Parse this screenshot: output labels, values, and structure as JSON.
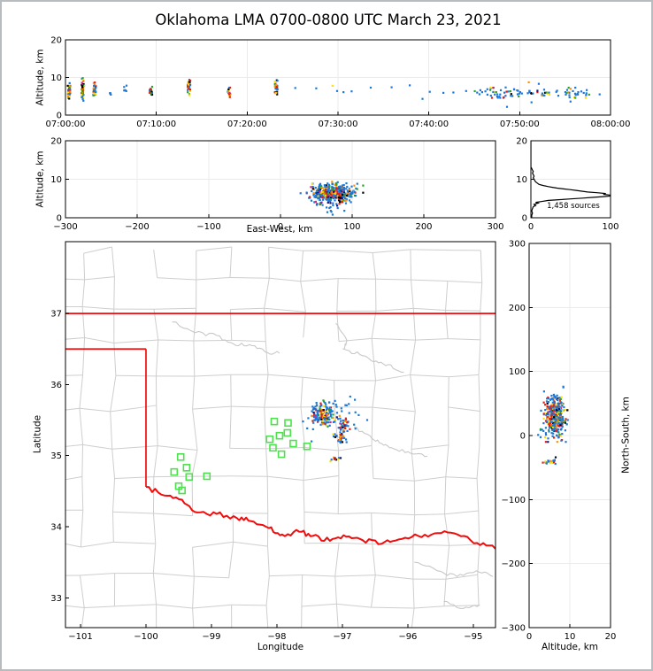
{
  "title": "Oklahoma LMA 0700-0800 UTC March 23, 2021",
  "colors": {
    "background": "#ffffff",
    "frame": "#000000",
    "grid": "#ebebeb",
    "county_line": "#cecece",
    "river_line": "#c8c8c8",
    "state_border": "#f00d0d",
    "station_marker": "#4de24d",
    "histogram_line": "#000000",
    "palette": {
      "blue": "#1c78d8",
      "green": "#27a327",
      "yellow": "#ffdf00",
      "orange": "#ff9100",
      "red": "#e51b12",
      "navy": "#10137e",
      "black": "#000000",
      "magenta": "#d6258e"
    },
    "palette_weights": {
      "cool": [
        [
          "blue",
          0.52
        ],
        [
          "green",
          0.1
        ],
        [
          "yellow",
          0.08
        ],
        [
          "orange",
          0.07
        ],
        [
          "red",
          0.1
        ],
        [
          "navy",
          0.06
        ],
        [
          "black",
          0.03
        ],
        [
          "magenta",
          0.04
        ]
      ],
      "hot": [
        [
          "red",
          0.3
        ],
        [
          "orange",
          0.2
        ],
        [
          "yellow",
          0.16
        ],
        [
          "green",
          0.1
        ],
        [
          "black",
          0.08
        ],
        [
          "navy",
          0.06
        ],
        [
          "blue",
          0.08
        ],
        [
          "magenta",
          0.02
        ]
      ],
      "flash": [
        [
          "blue",
          0.3
        ],
        [
          "red",
          0.17
        ],
        [
          "orange",
          0.13
        ],
        [
          "yellow",
          0.12
        ],
        [
          "green",
          0.12
        ],
        [
          "black",
          0.07
        ],
        [
          "navy",
          0.06
        ],
        [
          "magenta",
          0.03
        ]
      ],
      "band": [
        [
          "blue",
          0.68
        ],
        [
          "green",
          0.08
        ],
        [
          "yellow",
          0.07
        ],
        [
          "orange",
          0.05
        ],
        [
          "red",
          0.06
        ],
        [
          "black",
          0.03
        ],
        [
          "navy",
          0.03
        ]
      ]
    }
  },
  "chart_data": [
    {
      "id": "time_height",
      "type": "scatter",
      "ylabel": "Altitude, km",
      "xlim_minutes": [
        0,
        60
      ],
      "xtick_minutes": [
        0,
        10,
        20,
        30,
        40,
        50,
        60
      ],
      "xtick_labels": [
        "07:00:00",
        "07:10:00",
        "07:20:00",
        "07:30:00",
        "07:40:00",
        "07:50:00",
        "08:00:00"
      ],
      "ylim": [
        0,
        20
      ],
      "ytick_vals": [
        0,
        10,
        20
      ],
      "ytick_labels": [
        "0",
        "10",
        "20"
      ],
      "flashes": [
        {
          "t": 0.4,
          "alt_lo": 3.8,
          "alt_hi": 9.6,
          "n": 34,
          "palette": "flash"
        },
        {
          "t": 1.9,
          "alt_lo": 3.4,
          "alt_hi": 10.0,
          "n": 46,
          "palette": "flash"
        },
        {
          "t": 3.2,
          "alt_lo": 3.9,
          "alt_hi": 9.2,
          "n": 30,
          "palette": "flash"
        },
        {
          "t": 4.9,
          "alt_lo": 5.1,
          "alt_hi": 6.3,
          "n": 4,
          "palette": "blue"
        },
        {
          "t": 6.6,
          "alt_lo": 5.2,
          "alt_hi": 8.9,
          "n": 6,
          "palette": "blue"
        },
        {
          "t": 9.4,
          "alt_lo": 4.7,
          "alt_hi": 7.6,
          "n": 24,
          "palette": "flash"
        },
        {
          "t": 13.6,
          "alt_lo": 4.3,
          "alt_hi": 10.4,
          "n": 26,
          "palette": "flash"
        },
        {
          "t": 18.0,
          "alt_lo": 4.3,
          "alt_hi": 7.6,
          "n": 16,
          "palette": "flash"
        },
        {
          "t": 23.2,
          "alt_lo": 5.0,
          "alt_hi": 9.8,
          "n": 26,
          "palette": "flash"
        }
      ],
      "band": {
        "t0": 44.5,
        "t1": 57.8,
        "alt_mean": 6.0,
        "alt_sd": 0.8,
        "alt_lo": 4.6,
        "alt_hi": 8.0,
        "n": 95,
        "palette": "band"
      },
      "singles": [
        [
          25.3,
          7.2,
          "blue"
        ],
        [
          27.6,
          7.1,
          "blue"
        ],
        [
          29.4,
          7.8,
          "yellow"
        ],
        [
          29.9,
          6.4,
          "blue"
        ],
        [
          30.6,
          6.1,
          "blue"
        ],
        [
          31.5,
          6.3,
          "blue"
        ],
        [
          33.6,
          7.3,
          "blue"
        ],
        [
          35.9,
          7.4,
          "blue"
        ],
        [
          37.9,
          7.9,
          "blue"
        ],
        [
          39.3,
          4.3,
          "blue"
        ],
        [
          40.1,
          6.2,
          "blue"
        ],
        [
          41.6,
          5.9,
          "blue"
        ],
        [
          42.7,
          6.0,
          "blue"
        ],
        [
          44.1,
          6.4,
          "blue"
        ],
        [
          48.6,
          2.2,
          "blue"
        ],
        [
          51.3,
          3.4,
          "blue"
        ],
        [
          51.0,
          8.7,
          "orange"
        ],
        [
          55.6,
          3.6,
          "blue"
        ],
        [
          52.1,
          8.3,
          "blue"
        ],
        [
          58.8,
          5.5,
          "blue"
        ],
        [
          57.3,
          5.3,
          "blue"
        ]
      ]
    },
    {
      "id": "ew_height",
      "type": "scatter",
      "xlabel": "East-West, km",
      "ylabel": "Altitude, km",
      "xlim": [
        -300,
        300
      ],
      "xtick_vals": [
        -300,
        -200,
        -100,
        0,
        100,
        200,
        300
      ],
      "xtick_labels": [
        "−300",
        "−200",
        "−100",
        "0",
        "100",
        "200",
        "300"
      ],
      "ylim": [
        0,
        20
      ],
      "ytick_vals": [
        0,
        10,
        20
      ],
      "ytick_labels": [
        "0",
        "10",
        "20"
      ],
      "clusters": [
        {
          "cx": 72,
          "sx": 16,
          "cy": 6.3,
          "sy": 1.25,
          "n": 430,
          "bias": true,
          "clip_x": [
            28,
            118
          ],
          "clip_y": [
            2.6,
            10.3
          ]
        },
        {
          "cx": 76,
          "sx": 13,
          "cy": 2.4,
          "sy": 0.7,
          "n": 9,
          "palette": "blue",
          "clip_x": [
            45,
            105
          ],
          "clip_y": [
            0.8,
            3.4
          ]
        }
      ]
    },
    {
      "id": "alt_histogram",
      "type": "line",
      "annotation": "1,458 sources",
      "xlim": [
        0,
        100
      ],
      "xtick_vals": [
        0,
        100
      ],
      "xtick_labels": [
        "0",
        "100"
      ],
      "ylim": [
        0,
        20
      ],
      "ytick_vals": [
        0,
        10,
        20
      ],
      "ytick_labels": [
        "0",
        "10",
        "20"
      ],
      "curve_alt_count": [
        [
          0,
          1
        ],
        [
          0.6,
          1
        ],
        [
          1.2,
          2
        ],
        [
          1.8,
          1
        ],
        [
          2.4,
          2
        ],
        [
          2.9,
          3
        ],
        [
          3.2,
          6
        ],
        [
          3.5,
          4
        ],
        [
          3.8,
          9
        ],
        [
          4.0,
          6
        ],
        [
          4.2,
          13
        ],
        [
          4.5,
          22
        ],
        [
          4.7,
          35
        ],
        [
          4.9,
          50
        ],
        [
          5.1,
          65
        ],
        [
          5.3,
          79
        ],
        [
          5.5,
          91
        ],
        [
          5.7,
          103
        ],
        [
          5.9,
          99
        ],
        [
          6.1,
          91
        ],
        [
          6.3,
          94
        ],
        [
          6.5,
          83
        ],
        [
          6.7,
          71
        ],
        [
          6.9,
          64
        ],
        [
          7.1,
          57
        ],
        [
          7.3,
          49
        ],
        [
          7.5,
          41
        ],
        [
          7.7,
          33
        ],
        [
          7.9,
          27
        ],
        [
          8.1,
          22
        ],
        [
          8.3,
          17
        ],
        [
          8.5,
          13
        ],
        [
          8.7,
          10
        ],
        [
          9.0,
          8
        ],
        [
          9.3,
          6
        ],
        [
          9.6,
          5
        ],
        [
          10.0,
          4
        ],
        [
          10.4,
          3
        ],
        [
          10.8,
          4
        ],
        [
          11.2,
          3
        ],
        [
          11.6,
          2
        ],
        [
          12.0,
          3
        ],
        [
          12.4,
          2
        ],
        [
          12.8,
          1
        ],
        [
          13.2,
          0
        ],
        [
          20,
          0
        ]
      ]
    },
    {
      "id": "map",
      "type": "scatter",
      "xlabel": "Longitude",
      "ylabel": "Latitude",
      "xlim": [
        -101.23,
        -94.66
      ],
      "xtick_vals": [
        -101,
        -100,
        -99,
        -98,
        -97,
        -96,
        -95
      ],
      "xtick_labels": [
        "−101",
        "−100",
        "−99",
        "−98",
        "−97",
        "−96",
        "−95"
      ],
      "ylim": [
        32.58,
        38.01
      ],
      "ytick_vals": [
        33,
        34,
        35,
        36,
        37
      ],
      "ytick_labels": [
        "33",
        "34",
        "35",
        "36",
        "37"
      ],
      "state_border": {
        "north_lat": 37.0,
        "panhandle_lat": 36.5,
        "panhandle_lon": -100.0,
        "red_river": [
          [
            -100.0,
            34.56
          ],
          [
            -99.72,
            34.44
          ],
          [
            -99.45,
            34.38
          ],
          [
            -99.22,
            34.2
          ],
          [
            -98.92,
            34.18
          ],
          [
            -98.61,
            34.12
          ],
          [
            -98.4,
            34.08
          ],
          [
            -98.12,
            33.98
          ],
          [
            -97.92,
            33.89
          ],
          [
            -97.66,
            33.93
          ],
          [
            -97.45,
            33.87
          ],
          [
            -97.19,
            33.8
          ],
          [
            -96.94,
            33.86
          ],
          [
            -96.69,
            33.81
          ],
          [
            -96.4,
            33.76
          ],
          [
            -96.14,
            33.82
          ],
          [
            -95.84,
            33.87
          ],
          [
            -95.54,
            33.91
          ],
          [
            -95.24,
            33.89
          ],
          [
            -94.94,
            33.77
          ],
          [
            -94.66,
            33.69
          ]
        ]
      },
      "county_grid": {
        "lon_start": -101.45,
        "lon_end": -94.4,
        "lon_step": 0.52,
        "lat_start": 32.4,
        "lat_end": 38.15,
        "lat_step": 0.44,
        "jitter": 0.09,
        "dropout": 0.16,
        "seed": 7
      },
      "rivers": [
        [
          [
            -99.6,
            36.88
          ],
          [
            -99.25,
            36.73
          ],
          [
            -98.92,
            36.69
          ],
          [
            -98.66,
            36.57
          ],
          [
            -98.42,
            36.56
          ],
          [
            -98.18,
            36.46
          ],
          [
            -97.96,
            36.44
          ]
        ],
        [
          [
            -97.1,
            36.86
          ],
          [
            -96.93,
            36.62
          ],
          [
            -96.98,
            36.5
          ],
          [
            -96.73,
            36.42
          ],
          [
            -96.52,
            36.32
          ],
          [
            -96.3,
            36.28
          ],
          [
            -96.06,
            36.17
          ]
        ],
        [
          [
            -96.82,
            35.4
          ],
          [
            -96.58,
            35.28
          ],
          [
            -96.4,
            35.17
          ],
          [
            -96.22,
            35.1
          ],
          [
            -95.95,
            35.03
          ],
          [
            -95.7,
            34.99
          ]
        ],
        [
          [
            -95.9,
            33.5
          ],
          [
            -95.55,
            33.38
          ],
          [
            -95.25,
            33.3
          ],
          [
            -94.95,
            33.38
          ],
          [
            -94.7,
            33.3
          ]
        ],
        [
          [
            -95.45,
            32.95
          ],
          [
            -95.15,
            32.85
          ],
          [
            -94.9,
            32.9
          ]
        ]
      ],
      "stations": [
        [
          -98.04,
          35.48
        ],
        [
          -97.83,
          35.46
        ],
        [
          -98.11,
          35.23
        ],
        [
          -97.96,
          35.28
        ],
        [
          -98.06,
          35.11
        ],
        [
          -97.75,
          35.17
        ],
        [
          -97.93,
          35.02
        ],
        [
          -97.54,
          35.13
        ],
        [
          -97.84,
          35.32
        ],
        [
          -99.47,
          34.98
        ],
        [
          -99.38,
          34.83
        ],
        [
          -99.57,
          34.77
        ],
        [
          -99.34,
          34.7
        ],
        [
          -99.07,
          34.71
        ],
        [
          -99.5,
          34.57
        ],
        [
          -99.45,
          34.51
        ]
      ],
      "clusters": [
        {
          "cx": -97.3,
          "sx": 0.1,
          "cy": 35.57,
          "sy": 0.085,
          "n": 160,
          "bias": true,
          "clip_x": [
            -97.62,
            -96.98
          ],
          "clip_y": [
            35.35,
            35.92
          ]
        },
        {
          "cx": -97.05,
          "sx": 0.13,
          "cy": 35.71,
          "sy": 0.06,
          "n": 13,
          "palette": "blue",
          "clip_x": [
            -97.35,
            -96.8
          ],
          "clip_y": [
            35.58,
            35.88
          ]
        },
        {
          "cx": -96.97,
          "sx": 0.05,
          "cy": 35.44,
          "sy": 0.05,
          "n": 42,
          "bias": true,
          "clip_x": [
            -97.12,
            -96.82
          ],
          "clip_y": [
            35.3,
            35.58
          ]
        },
        {
          "cx": -97.04,
          "sx": 0.045,
          "cy": 35.25,
          "sy": 0.05,
          "n": 36,
          "bias": true,
          "clip_x": [
            -97.18,
            -96.9
          ],
          "clip_y": [
            35.12,
            35.38
          ]
        },
        {
          "cx": -97.11,
          "sx": 0.04,
          "cy": 34.95,
          "sy": 0.018,
          "n": 11,
          "bias": true,
          "clip_x": [
            -97.22,
            -97.0
          ],
          "clip_y": [
            34.9,
            35.0
          ]
        }
      ],
      "singles": [
        [
          -96.62,
          35.5
        ],
        [
          -96.88,
          35.83
        ],
        [
          -97.6,
          35.48
        ],
        [
          -96.75,
          35.57
        ],
        [
          -97.47,
          35.2
        ],
        [
          -96.8,
          35.38
        ]
      ]
    },
    {
      "id": "ns_height",
      "type": "scatter",
      "xlabel": "Altitude, km",
      "ylabel": "North-South, km",
      "xlim": [
        0,
        20
      ],
      "xtick_vals": [
        0,
        10,
        20
      ],
      "xtick_labels": [
        "0",
        "10",
        "20"
      ],
      "ylim": [
        -300,
        300
      ],
      "ytick_vals": [
        -300,
        -200,
        -100,
        0,
        100,
        200,
        300
      ],
      "ytick_labels": [
        "−300",
        "−200",
        "−100",
        "0",
        "100",
        "200",
        "300"
      ],
      "clusters": [
        {
          "cx": 6.3,
          "sx": 1.2,
          "cy": 30,
          "sy": 16,
          "n": 380,
          "bias": true,
          "clip_x": [
            2.8,
            10.5
          ],
          "clip_y": [
            -10,
            74
          ]
        },
        {
          "cx": 6.0,
          "sx": 1.9,
          "cy": 24,
          "sy": 27,
          "n": 26,
          "palette": "blue",
          "clip_x": [
            2,
            11
          ],
          "clip_y": [
            -55,
            80
          ]
        },
        {
          "cx": 5.3,
          "sx": 0.9,
          "cy": -40,
          "sy": 2.5,
          "n": 22,
          "bias": true,
          "clip_x": [
            3.4,
            7.6
          ],
          "clip_y": [
            -46,
            -34
          ]
        }
      ]
    }
  ]
}
